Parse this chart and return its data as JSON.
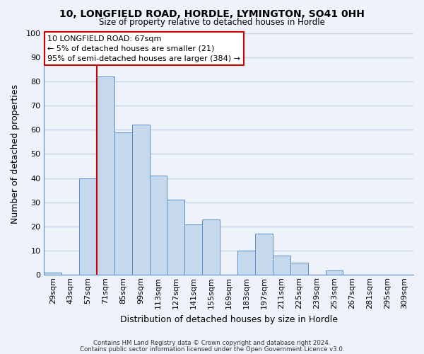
{
  "title_line1": "10, LONGFIELD ROAD, HORDLE, LYMINGTON, SO41 0HH",
  "title_line2": "Size of property relative to detached houses in Hordle",
  "xlabel": "Distribution of detached houses by size in Hordle",
  "ylabel": "Number of detached properties",
  "bar_color": "#c5d8ec",
  "bar_edge_color": "#5b8fc9",
  "bins": [
    "29sqm",
    "43sqm",
    "57sqm",
    "71sqm",
    "85sqm",
    "99sqm",
    "113sqm",
    "127sqm",
    "141sqm",
    "155sqm",
    "169sqm",
    "183sqm",
    "197sqm",
    "211sqm",
    "225sqm",
    "239sqm",
    "253sqm",
    "267sqm",
    "281sqm",
    "295sqm",
    "309sqm"
  ],
  "values": [
    1,
    0,
    40,
    82,
    59,
    62,
    41,
    31,
    21,
    23,
    0,
    10,
    17,
    8,
    5,
    0,
    2,
    0,
    0,
    0,
    0
  ],
  "marker_line_color": "#cc0000",
  "marker_bin_index": 3,
  "ylim": [
    0,
    100
  ],
  "annotation_title": "10 LONGFIELD ROAD: 67sqm",
  "annotation_line1": "← 5% of detached houses are smaller (21)",
  "annotation_line2": "95% of semi-detached houses are larger (384) →",
  "annotation_box_facecolor": "#ffffff",
  "annotation_box_edgecolor": "#cc0000",
  "footer_line1": "Contains HM Land Registry data © Crown copyright and database right 2024.",
  "footer_line2": "Contains public sector information licensed under the Open Government Licence v3.0.",
  "background_color": "#eef2fa",
  "plot_bg_color": "#eef2fa",
  "grid_color": "#c8d4e8",
  "spine_color": "#5b8fc9"
}
